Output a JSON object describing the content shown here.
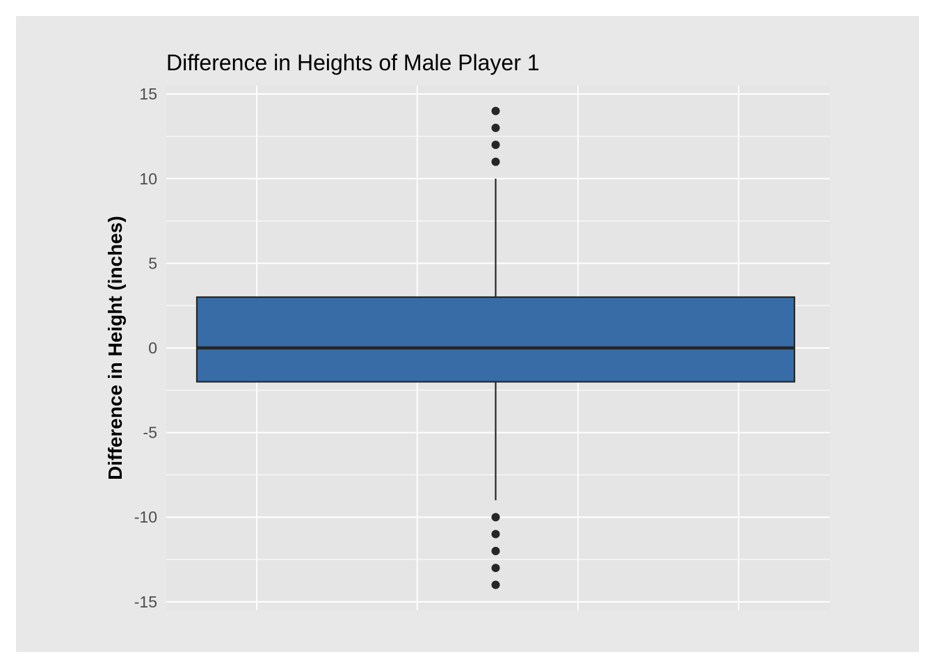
{
  "chart_data": {
    "type": "box",
    "title": "Difference in Heights of Male Player 1",
    "xlabel": "",
    "ylabel": "Difference in Height (inches)",
    "ylim": [
      -15.5,
      15.5
    ],
    "yticks": [
      15,
      10,
      5,
      0,
      -5,
      -10,
      -15
    ],
    "ytick_labels": [
      "15",
      "10",
      "5",
      "0",
      "-5",
      "-10",
      "-15"
    ],
    "grid": true,
    "box": {
      "q1": -2,
      "median": 0,
      "q3": 3,
      "whisker_low": -9,
      "whisker_high": 10,
      "outliers": [
        14,
        13,
        12,
        11,
        -10,
        -11,
        -12,
        -13,
        -14
      ]
    },
    "colors": {
      "box_fill": "#386ca6",
      "box_stroke": "#262626",
      "panel": "#e5e5e5",
      "background": "#e8e8e8",
      "grid": "#ffffff",
      "outlier": "#262626"
    }
  }
}
